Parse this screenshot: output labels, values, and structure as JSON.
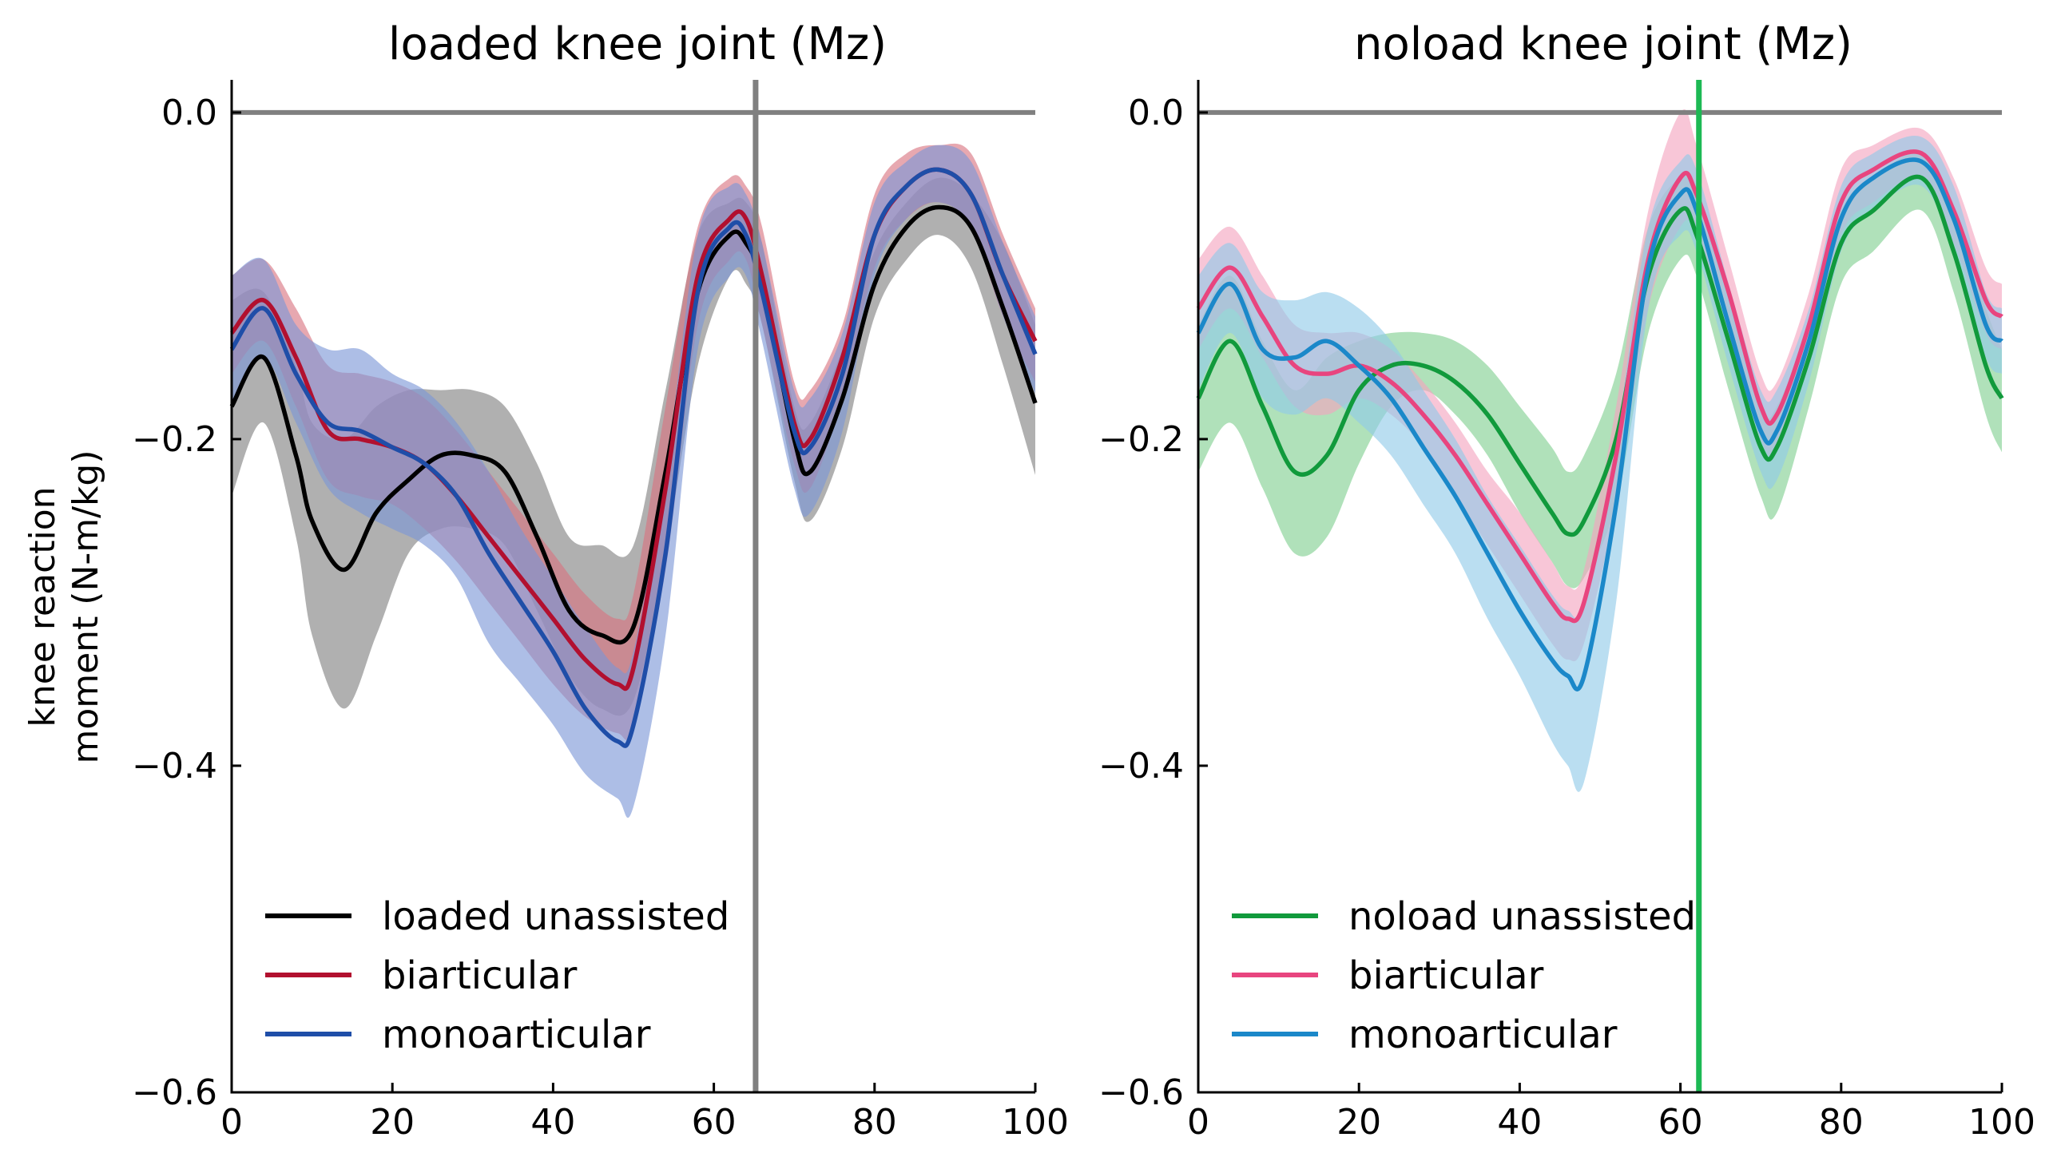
{
  "chart_data": [
    {
      "type": "line",
      "title": "loaded knee joint (Mz)",
      "ylabel": "knee reaction\nmoment (N-m/kg)",
      "xlabel": "",
      "xlim": [
        0,
        100
      ],
      "ylim": [
        -0.6,
        0.02
      ],
      "xticks": [
        "0",
        "20",
        "40",
        "60",
        "80",
        "100"
      ],
      "yticks": [
        "0.0",
        "−0.2",
        "−0.4",
        "−0.6"
      ],
      "reference_lines": {
        "hline_y": 0.0,
        "hline_color": "#808080",
        "vline_x": 65.2,
        "vline_color": "#808080"
      },
      "legend_position": "lower-left",
      "series": [
        {
          "name": "loaded unassisted",
          "color": "#000000",
          "band_color": "#808080",
          "x": [
            0,
            4,
            8,
            10,
            14,
            18,
            22,
            26,
            30,
            34,
            38,
            42,
            46,
            50,
            54,
            58,
            62,
            64,
            66,
            70,
            72,
            76,
            80,
            84,
            88,
            92,
            96,
            100
          ],
          "mean": [
            -0.18,
            -0.15,
            -0.21,
            -0.25,
            -0.28,
            -0.245,
            -0.225,
            -0.21,
            -0.21,
            -0.22,
            -0.26,
            -0.305,
            -0.32,
            -0.315,
            -0.22,
            -0.11,
            -0.075,
            -0.08,
            -0.105,
            -0.2,
            -0.22,
            -0.175,
            -0.105,
            -0.07,
            -0.058,
            -0.07,
            -0.12,
            -0.178
          ],
          "upper": [
            -0.115,
            -0.11,
            -0.155,
            -0.19,
            -0.2,
            -0.18,
            -0.17,
            -0.17,
            -0.17,
            -0.18,
            -0.215,
            -0.26,
            -0.265,
            -0.265,
            -0.17,
            -0.075,
            -0.055,
            -0.055,
            -0.08,
            -0.18,
            -0.19,
            -0.145,
            -0.085,
            -0.055,
            -0.04,
            -0.05,
            -0.08,
            -0.13
          ],
          "lower": [
            -0.235,
            -0.19,
            -0.26,
            -0.32,
            -0.365,
            -0.32,
            -0.27,
            -0.255,
            -0.255,
            -0.265,
            -0.305,
            -0.345,
            -0.365,
            -0.36,
            -0.27,
            -0.155,
            -0.1,
            -0.105,
            -0.13,
            -0.225,
            -0.25,
            -0.205,
            -0.125,
            -0.09,
            -0.075,
            -0.095,
            -0.155,
            -0.222
          ]
        },
        {
          "name": "biarticular",
          "color": "#b2102f",
          "band_color": "#d9727f",
          "x": [
            0,
            4,
            8,
            12,
            16,
            20,
            24,
            28,
            32,
            36,
            40,
            44,
            48,
            50,
            54,
            58,
            62,
            64,
            66,
            70,
            72,
            76,
            80,
            84,
            88,
            92,
            96,
            100
          ],
          "mean": [
            -0.135,
            -0.115,
            -0.15,
            -0.195,
            -0.2,
            -0.205,
            -0.215,
            -0.235,
            -0.26,
            -0.285,
            -0.31,
            -0.335,
            -0.35,
            -0.34,
            -0.23,
            -0.1,
            -0.065,
            -0.065,
            -0.1,
            -0.19,
            -0.2,
            -0.15,
            -0.075,
            -0.045,
            -0.035,
            -0.05,
            -0.1,
            -0.14
          ],
          "upper": [
            -0.1,
            -0.09,
            -0.12,
            -0.155,
            -0.16,
            -0.165,
            -0.175,
            -0.195,
            -0.22,
            -0.245,
            -0.27,
            -0.295,
            -0.31,
            -0.295,
            -0.18,
            -0.07,
            -0.04,
            -0.045,
            -0.07,
            -0.165,
            -0.17,
            -0.13,
            -0.05,
            -0.025,
            -0.02,
            -0.025,
            -0.075,
            -0.12
          ],
          "lower": [
            -0.16,
            -0.14,
            -0.18,
            -0.225,
            -0.235,
            -0.24,
            -0.255,
            -0.275,
            -0.3,
            -0.325,
            -0.35,
            -0.37,
            -0.38,
            -0.375,
            -0.28,
            -0.13,
            -0.09,
            -0.09,
            -0.13,
            -0.215,
            -0.23,
            -0.175,
            -0.095,
            -0.065,
            -0.055,
            -0.07,
            -0.125,
            -0.165
          ]
        },
        {
          "name": "monoarticular",
          "color": "#1f4ea8",
          "band_color": "#7b96d6",
          "x": [
            0,
            4,
            8,
            12,
            16,
            20,
            24,
            28,
            32,
            36,
            40,
            44,
            48,
            50,
            54,
            58,
            62,
            64,
            66,
            70,
            72,
            76,
            80,
            84,
            88,
            92,
            96,
            100
          ],
          "mean": [
            -0.145,
            -0.12,
            -0.16,
            -0.19,
            -0.195,
            -0.205,
            -0.215,
            -0.235,
            -0.27,
            -0.3,
            -0.33,
            -0.365,
            -0.385,
            -0.375,
            -0.27,
            -0.11,
            -0.07,
            -0.075,
            -0.11,
            -0.195,
            -0.205,
            -0.16,
            -0.075,
            -0.045,
            -0.035,
            -0.05,
            -0.1,
            -0.148
          ],
          "upper": [
            -0.1,
            -0.09,
            -0.13,
            -0.145,
            -0.145,
            -0.16,
            -0.17,
            -0.19,
            -0.22,
            -0.255,
            -0.285,
            -0.315,
            -0.34,
            -0.33,
            -0.22,
            -0.075,
            -0.045,
            -0.05,
            -0.08,
            -0.17,
            -0.175,
            -0.135,
            -0.055,
            -0.03,
            -0.02,
            -0.03,
            -0.08,
            -0.125
          ],
          "lower": [
            -0.18,
            -0.15,
            -0.19,
            -0.23,
            -0.245,
            -0.255,
            -0.265,
            -0.285,
            -0.325,
            -0.35,
            -0.375,
            -0.405,
            -0.42,
            -0.425,
            -0.32,
            -0.145,
            -0.1,
            -0.1,
            -0.14,
            -0.23,
            -0.245,
            -0.195,
            -0.1,
            -0.065,
            -0.055,
            -0.07,
            -0.125,
            -0.172
          ]
        }
      ]
    },
    {
      "type": "line",
      "title": "noload knee joint (Mz)",
      "xlabel": "",
      "ylabel": "",
      "xlim": [
        0,
        100
      ],
      "ylim": [
        -0.6,
        0.02
      ],
      "xticks": [
        "0",
        "20",
        "40",
        "60",
        "80",
        "100"
      ],
      "yticks": [
        "0.0",
        "−0.2",
        "−0.4",
        "−0.6"
      ],
      "reference_lines": {
        "hline_y": 0.0,
        "hline_color": "#808080",
        "vline_x": 62.3,
        "vline_color": "#1db954"
      },
      "legend_position": "lower-left",
      "series": [
        {
          "name": "noload unassisted",
          "color": "#119a3c",
          "band_color": "#7fcf90",
          "x": [
            0,
            4,
            8,
            12,
            16,
            20,
            24,
            28,
            32,
            36,
            40,
            44,
            46,
            48,
            52,
            56,
            60,
            62,
            66,
            70,
            72,
            76,
            80,
            84,
            90,
            94,
            98,
            100
          ],
          "mean": [
            -0.175,
            -0.14,
            -0.18,
            -0.22,
            -0.21,
            -0.17,
            -0.155,
            -0.155,
            -0.165,
            -0.185,
            -0.215,
            -0.245,
            -0.258,
            -0.25,
            -0.2,
            -0.1,
            -0.06,
            -0.075,
            -0.14,
            -0.205,
            -0.205,
            -0.15,
            -0.08,
            -0.06,
            -0.04,
            -0.085,
            -0.155,
            -0.175
          ],
          "upper": [
            -0.13,
            -0.1,
            -0.14,
            -0.17,
            -0.15,
            -0.14,
            -0.135,
            -0.135,
            -0.14,
            -0.155,
            -0.18,
            -0.205,
            -0.22,
            -0.21,
            -0.16,
            -0.07,
            -0.04,
            -0.05,
            -0.11,
            -0.18,
            -0.18,
            -0.13,
            -0.06,
            -0.04,
            -0.025,
            -0.06,
            -0.12,
            -0.145
          ],
          "lower": [
            -0.22,
            -0.19,
            -0.23,
            -0.27,
            -0.26,
            -0.215,
            -0.18,
            -0.17,
            -0.185,
            -0.21,
            -0.245,
            -0.275,
            -0.29,
            -0.285,
            -0.24,
            -0.135,
            -0.09,
            -0.1,
            -0.17,
            -0.235,
            -0.245,
            -0.18,
            -0.105,
            -0.085,
            -0.06,
            -0.11,
            -0.185,
            -0.208
          ]
        },
        {
          "name": "biarticular",
          "color": "#e8457f",
          "band_color": "#f4a3bf",
          "x": [
            0,
            4,
            8,
            12,
            16,
            20,
            24,
            28,
            32,
            36,
            40,
            44,
            46,
            48,
            52,
            56,
            60,
            62,
            66,
            70,
            72,
            76,
            80,
            84,
            90,
            94,
            98,
            100
          ],
          "mean": [
            -0.12,
            -0.095,
            -0.125,
            -0.155,
            -0.16,
            -0.155,
            -0.165,
            -0.185,
            -0.21,
            -0.24,
            -0.27,
            -0.3,
            -0.31,
            -0.3,
            -0.21,
            -0.09,
            -0.04,
            -0.05,
            -0.11,
            -0.18,
            -0.185,
            -0.13,
            -0.055,
            -0.035,
            -0.025,
            -0.06,
            -0.115,
            -0.125
          ],
          "upper": [
            -0.09,
            -0.07,
            -0.1,
            -0.13,
            -0.135,
            -0.135,
            -0.145,
            -0.165,
            -0.19,
            -0.22,
            -0.245,
            -0.275,
            -0.29,
            -0.28,
            -0.18,
            -0.06,
            0.0,
            -0.02,
            -0.09,
            -0.16,
            -0.165,
            -0.11,
            -0.035,
            -0.02,
            -0.01,
            -0.04,
            -0.095,
            -0.105
          ],
          "lower": [
            -0.145,
            -0.12,
            -0.15,
            -0.18,
            -0.185,
            -0.175,
            -0.185,
            -0.205,
            -0.235,
            -0.265,
            -0.295,
            -0.325,
            -0.335,
            -0.325,
            -0.24,
            -0.12,
            -0.07,
            -0.075,
            -0.13,
            -0.2,
            -0.205,
            -0.15,
            -0.075,
            -0.055,
            -0.04,
            -0.08,
            -0.135,
            -0.145
          ]
        },
        {
          "name": "monoarticular",
          "color": "#1b88c9",
          "band_color": "#8fc9e8",
          "x": [
            0,
            4,
            8,
            12,
            16,
            20,
            24,
            28,
            32,
            36,
            40,
            44,
            46,
            48,
            52,
            56,
            60,
            62,
            66,
            70,
            72,
            76,
            80,
            84,
            90,
            94,
            98,
            100
          ],
          "mean": [
            -0.135,
            -0.105,
            -0.145,
            -0.15,
            -0.14,
            -0.155,
            -0.175,
            -0.205,
            -0.235,
            -0.27,
            -0.305,
            -0.335,
            -0.345,
            -0.345,
            -0.24,
            -0.095,
            -0.05,
            -0.06,
            -0.13,
            -0.195,
            -0.195,
            -0.14,
            -0.065,
            -0.04,
            -0.03,
            -0.065,
            -0.13,
            -0.14
          ],
          "upper": [
            -0.1,
            -0.08,
            -0.11,
            -0.115,
            -0.11,
            -0.12,
            -0.14,
            -0.17,
            -0.2,
            -0.235,
            -0.265,
            -0.295,
            -0.305,
            -0.3,
            -0.2,
            -0.07,
            -0.03,
            -0.035,
            -0.105,
            -0.17,
            -0.17,
            -0.12,
            -0.045,
            -0.025,
            -0.015,
            -0.045,
            -0.11,
            -0.12
          ],
          "lower": [
            -0.17,
            -0.135,
            -0.175,
            -0.185,
            -0.175,
            -0.19,
            -0.21,
            -0.24,
            -0.27,
            -0.31,
            -0.345,
            -0.385,
            -0.4,
            -0.41,
            -0.3,
            -0.12,
            -0.075,
            -0.085,
            -0.155,
            -0.22,
            -0.225,
            -0.165,
            -0.085,
            -0.06,
            -0.045,
            -0.085,
            -0.15,
            -0.16
          ]
        }
      ]
    }
  ]
}
